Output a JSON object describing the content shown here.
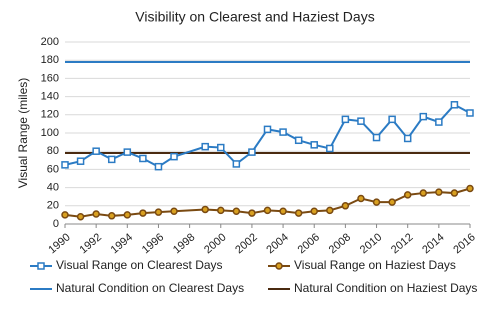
{
  "chart_data": {
    "type": "line",
    "title": "Visibility on Clearest and Haziest Days",
    "y_label": "Visual Range (miles)",
    "x": [
      1990,
      1991,
      1992,
      1993,
      1994,
      1995,
      1996,
      1997,
      1999,
      2000,
      2001,
      2002,
      2003,
      2004,
      2005,
      2006,
      2007,
      2008,
      2009,
      2010,
      2011,
      2012,
      2013,
      2014,
      2015,
      2016
    ],
    "series": [
      {
        "name": "Visual Range on Clearest Days",
        "color": "#2b7bc4",
        "marker": "square",
        "marker_fill": "#ffffff",
        "values": [
          65,
          69,
          80,
          71,
          79,
          72,
          63,
          74,
          85,
          84,
          66,
          79,
          104,
          101,
          92,
          87,
          83,
          115,
          113,
          95,
          115,
          94,
          118,
          112,
          131,
          122
        ]
      },
      {
        "name": "Visual Range on Haziest Days",
        "color": "#7a4a12",
        "marker": "circle",
        "marker_fill": "#d8a020",
        "values": [
          10,
          8,
          11,
          9,
          10,
          12,
          13,
          14,
          16,
          15,
          14,
          12,
          15,
          14,
          12,
          14,
          15,
          20,
          28,
          24,
          24,
          32,
          34,
          35,
          34,
          39
        ]
      }
    ],
    "reference_lines": [
      {
        "name": "Natural Condition on Clearest Days",
        "color": "#2b7bc4",
        "value": 178
      },
      {
        "name": "Natural Condition on Haziest Days",
        "color": "#4a2a10",
        "value": 78
      }
    ],
    "xlim": [
      1990,
      2016
    ],
    "xticks": [
      1990,
      1992,
      1994,
      1996,
      1998,
      2000,
      2002,
      2004,
      2006,
      2008,
      2010,
      2012,
      2014,
      2016
    ],
    "ylim": [
      0,
      200
    ],
    "yticks": [
      0,
      20,
      40,
      60,
      80,
      100,
      120,
      140,
      160,
      180,
      200
    ],
    "grid": true
  }
}
